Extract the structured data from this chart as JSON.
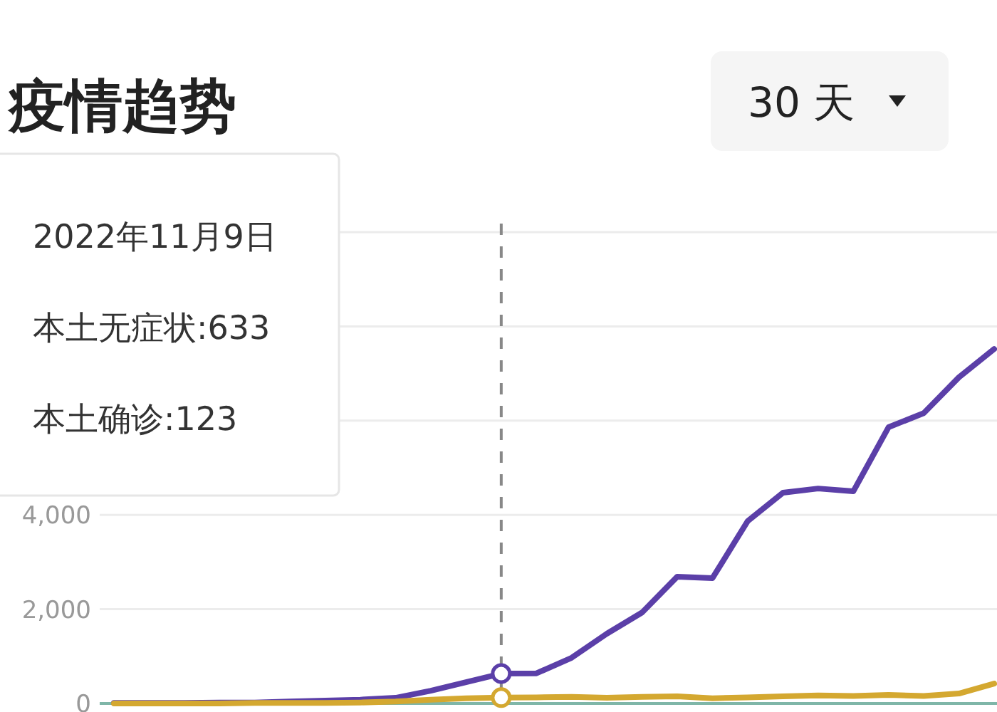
{
  "chart_data": {
    "type": "line",
    "title": "疫情趋势",
    "categories": [
      null,
      null,
      null,
      null,
      null,
      null,
      null,
      null,
      null,
      null,
      null,
      null,
      null,
      null,
      null,
      null,
      null,
      null,
      null,
      null,
      null,
      null,
      null,
      null,
      null,
      null
    ],
    "series": [
      {
        "color": "#5b3fa8",
        "values": [
          10,
          10,
          10,
          20,
          20,
          40,
          60,
          80,
          120,
          270,
          450,
          633,
          640,
          970,
          1480,
          1930,
          2690,
          2660,
          3870,
          4470,
          4560,
          4500,
          5860,
          6160,
          6920,
          7520
        ]
      },
      {
        "color": "#d4a830",
        "values": [
          0,
          0,
          0,
          0,
          10,
          10,
          10,
          20,
          40,
          80,
          110,
          123,
          130,
          140,
          120,
          140,
          150,
          110,
          130,
          150,
          170,
          160,
          180,
          160,
          210,
          420
        ]
      }
    ],
    "ylim": [
      0,
      10000
    ],
    "yticks": [
      0,
      {
        "value": 2000,
        "label": "2,000"
      },
      {
        "value": 4000,
        "label": "4,000"
      },
      {
        "value": 6000,
        "label": null
      },
      {
        "value": 8000,
        "label": null
      },
      {
        "value": 10000,
        "label": null
      }
    ],
    "tick_labels": "y",
    "grid": "y",
    "annotations": [
      "2022年11月9日",
      "本土无症状:633",
      "本土确诊:123",
      "30 天"
    ]
  }
}
